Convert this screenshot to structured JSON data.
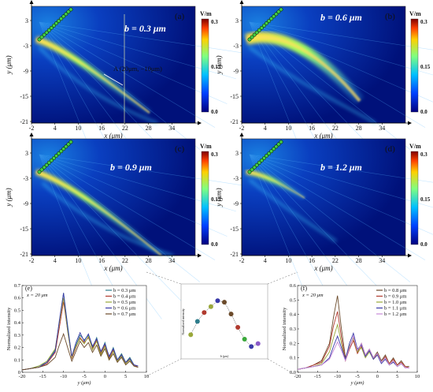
{
  "colorbar": {
    "unit": "V/m",
    "ticks": [
      "0.3",
      "0.15",
      "0.0"
    ]
  },
  "heatmaps": [
    {
      "id": "a",
      "letter": "(a)",
      "b_label": "b = 0.3 μm",
      "xticks": [
        "-2",
        "4",
        "10",
        "16",
        "22",
        "28",
        "34"
      ],
      "yticks": [
        "3",
        "-3",
        "-9",
        "-15",
        "-21"
      ],
      "xlabel": "x (μm)",
      "ylabel": "y (μm)",
      "annotation": "A (20μm, −10μm)"
    },
    {
      "id": "b",
      "letter": "(b)",
      "b_label": "b = 0.6 μm",
      "xticks": [
        "-2",
        "4",
        "10",
        "16",
        "22",
        "28",
        "34"
      ],
      "yticks": [
        "3",
        "-3",
        "-9",
        "-15",
        "-21"
      ],
      "xlabel": "x (μm)",
      "ylabel": "y (μm)"
    },
    {
      "id": "c",
      "letter": "(c)",
      "b_label": "b = 0.9 μm",
      "xticks": [
        "-2",
        "4",
        "10",
        "16",
        "22",
        "28",
        "34"
      ],
      "yticks": [
        "3",
        "-3",
        "-9",
        "-15",
        "-21"
      ],
      "xlabel": "x (μm)",
      "ylabel": "y (μm)"
    },
    {
      "id": "d",
      "letter": "(d)",
      "b_label": "b = 1.2 μm",
      "xticks": [
        "-2",
        "4",
        "10",
        "16",
        "22",
        "28",
        "34"
      ],
      "yticks": [
        "3",
        "-3",
        "-9",
        "-15",
        "-21"
      ],
      "xlabel": "x (μm)",
      "ylabel": "y (μm)"
    }
  ],
  "chart_data": [
    {
      "type": "heatmap",
      "panel": "(a)",
      "title": "b = 0.3 μm",
      "xlabel": "x (μm)",
      "ylabel": "y (μm)",
      "xlim": [
        -2,
        40
      ],
      "ylim": [
        -21,
        6
      ],
      "colorbar": {
        "unit": "V/m",
        "range": [
          0.0,
          0.3
        ]
      },
      "annotation": {
        "text": "A (20μm, −10μm)",
        "x": 20,
        "y": -10
      }
    },
    {
      "type": "heatmap",
      "panel": "(b)",
      "title": "b = 0.6 μm",
      "xlabel": "x (μm)",
      "ylabel": "y (μm)",
      "xlim": [
        -2,
        40
      ],
      "ylim": [
        -21,
        6
      ],
      "colorbar": {
        "unit": "V/m",
        "range": [
          0.0,
          0.3
        ]
      }
    },
    {
      "type": "heatmap",
      "panel": "(c)",
      "title": "b = 0.9 μm",
      "xlabel": "x (μm)",
      "ylabel": "y (μm)",
      "xlim": [
        -2,
        40
      ],
      "ylim": [
        -21,
        6
      ],
      "colorbar": {
        "unit": "V/m",
        "range": [
          0.0,
          0.3
        ]
      }
    },
    {
      "type": "heatmap",
      "panel": "(d)",
      "title": "b = 1.2 μm",
      "xlabel": "x (μm)",
      "ylabel": "y (μm)",
      "xlim": [
        -2,
        40
      ],
      "ylim": [
        -21,
        6
      ],
      "colorbar": {
        "unit": "V/m",
        "range": [
          0.0,
          0.3
        ]
      }
    },
    {
      "type": "line",
      "panel": "(e)",
      "annotation": "x = 20 μm",
      "xlabel": "y (μm)",
      "ylabel": "Normalized intensity",
      "xlim": [
        -20,
        10
      ],
      "ylim": [
        0,
        0.7
      ],
      "xticks": [
        "-20",
        "-15",
        "-10",
        "-5",
        "0",
        "5",
        "10"
      ],
      "yticks": [
        "0",
        "0.1",
        "0.2",
        "0.3",
        "0.4",
        "0.5",
        "0.6",
        "0.7"
      ],
      "legend_position": "top-right",
      "x": [
        -20,
        -18,
        -16,
        -14,
        -12,
        -11,
        -10,
        -9,
        -8,
        -7,
        -6,
        -5,
        -4,
        -3,
        -2,
        -1,
        0,
        1,
        2,
        3,
        4,
        5,
        6,
        7,
        8
      ],
      "series": [
        {
          "name": "b = 0.3 μm",
          "color": "#2e7d8c",
          "values": [
            0.02,
            0.03,
            0.05,
            0.08,
            0.18,
            0.4,
            0.64,
            0.38,
            0.12,
            0.22,
            0.3,
            0.26,
            0.3,
            0.2,
            0.28,
            0.16,
            0.24,
            0.12,
            0.2,
            0.1,
            0.15,
            0.08,
            0.12,
            0.06,
            0.05
          ]
        },
        {
          "name": "b = 0.4 μm",
          "color": "#b03a2e",
          "values": [
            0.02,
            0.03,
            0.04,
            0.07,
            0.16,
            0.36,
            0.57,
            0.34,
            0.11,
            0.2,
            0.28,
            0.24,
            0.28,
            0.19,
            0.26,
            0.15,
            0.22,
            0.11,
            0.18,
            0.09,
            0.14,
            0.07,
            0.11,
            0.05,
            0.05
          ]
        },
        {
          "name": "b = 0.5 μm",
          "color": "#9aa83a",
          "values": [
            0.02,
            0.03,
            0.05,
            0.09,
            0.19,
            0.4,
            0.6,
            0.33,
            0.12,
            0.21,
            0.27,
            0.23,
            0.29,
            0.18,
            0.25,
            0.14,
            0.21,
            0.1,
            0.17,
            0.09,
            0.13,
            0.07,
            0.1,
            0.05,
            0.04
          ]
        },
        {
          "name": "b = 0.6 μm",
          "color": "#3a3aa8",
          "values": [
            0.02,
            0.03,
            0.04,
            0.08,
            0.17,
            0.42,
            0.64,
            0.36,
            0.13,
            0.24,
            0.32,
            0.25,
            0.31,
            0.21,
            0.27,
            0.17,
            0.23,
            0.13,
            0.19,
            0.1,
            0.14,
            0.08,
            0.11,
            0.06,
            0.05
          ]
        },
        {
          "name": "b = 0.7 μm",
          "color": "#6b4a2a",
          "values": [
            0.02,
            0.03,
            0.04,
            0.06,
            0.12,
            0.22,
            0.31,
            0.2,
            0.09,
            0.17,
            0.25,
            0.2,
            0.24,
            0.16,
            0.22,
            0.13,
            0.19,
            0.1,
            0.15,
            0.08,
            0.12,
            0.06,
            0.09,
            0.05,
            0.04
          ]
        }
      ]
    },
    {
      "type": "scatter",
      "panel": "inset",
      "xlabel": "b (μm)",
      "ylabel": "Normalized intensity",
      "x": [
        0.2,
        0.3,
        0.4,
        0.5,
        0.6,
        0.7,
        0.8,
        0.9,
        1.0,
        1.1,
        1.2
      ],
      "values": [
        0.41,
        0.5,
        0.56,
        0.6,
        0.64,
        0.63,
        0.55,
        0.46,
        0.38,
        0.33,
        0.35
      ],
      "point_colors": [
        "#9aa83a",
        "#2e7d8c",
        "#b03a2e",
        "#9aa83a",
        "#3a3aa8",
        "#6b4a2a",
        "#6b4a2a",
        "#b03a2e",
        "#3aa83a",
        "#3a3aa8",
        "#8a5ac8"
      ]
    },
    {
      "type": "line",
      "panel": "(f)",
      "annotation": "x = 20 μm",
      "xlabel": "y (μm)",
      "ylabel": "Normalized intensity",
      "xlim": [
        -20,
        10
      ],
      "ylim": [
        0,
        0.6
      ],
      "xticks": [
        "-20",
        "-15",
        "-10",
        "-5",
        "0",
        "5",
        "10"
      ],
      "yticks": [
        "0.0",
        "0.1",
        "0.2",
        "0.3",
        "0.4",
        "0.5",
        "0.6"
      ],
      "legend_position": "top-right",
      "x": [
        -20,
        -18,
        -16,
        -14,
        -12,
        -11,
        -10,
        -9,
        -8,
        -7,
        -6,
        -5,
        -4,
        -3,
        -2,
        -1,
        0,
        1,
        2,
        3,
        4,
        5,
        6,
        7,
        8
      ],
      "series": [
        {
          "name": "b = 0.8 μm",
          "color": "#6b4a2a",
          "values": [
            0.02,
            0.03,
            0.05,
            0.08,
            0.2,
            0.38,
            0.53,
            0.3,
            0.1,
            0.18,
            0.24,
            0.14,
            0.2,
            0.12,
            0.16,
            0.1,
            0.14,
            0.08,
            0.12,
            0.06,
            0.1,
            0.05,
            0.08,
            0.04,
            0.04
          ]
        },
        {
          "name": "b = 0.9 μm",
          "color": "#b03a2e",
          "values": [
            0.02,
            0.03,
            0.05,
            0.07,
            0.18,
            0.32,
            0.42,
            0.24,
            0.08,
            0.16,
            0.22,
            0.13,
            0.18,
            0.11,
            0.15,
            0.09,
            0.13,
            0.07,
            0.11,
            0.06,
            0.09,
            0.05,
            0.07,
            0.04,
            0.03
          ]
        },
        {
          "name": "b = 1.0 μm",
          "color": "#9aa83a",
          "values": [
            0.02,
            0.03,
            0.04,
            0.06,
            0.14,
            0.24,
            0.33,
            0.2,
            0.08,
            0.18,
            0.24,
            0.14,
            0.17,
            0.1,
            0.14,
            0.09,
            0.12,
            0.07,
            0.1,
            0.05,
            0.08,
            0.04,
            0.06,
            0.03,
            0.03
          ]
        },
        {
          "name": "b = 1.1 μm",
          "color": "#3a3aa8",
          "values": [
            0.02,
            0.03,
            0.04,
            0.05,
            0.1,
            0.18,
            0.25,
            0.17,
            0.09,
            0.2,
            0.27,
            0.16,
            0.19,
            0.11,
            0.15,
            0.09,
            0.12,
            0.06,
            0.09,
            0.05,
            0.07,
            0.04,
            0.06,
            0.03,
            0.03
          ]
        },
        {
          "name": "b = 1.2 μm",
          "color": "#c88ad8",
          "values": [
            0.02,
            0.03,
            0.04,
            0.05,
            0.09,
            0.15,
            0.21,
            0.15,
            0.08,
            0.17,
            0.25,
            0.15,
            0.2,
            0.12,
            0.16,
            0.1,
            0.13,
            0.07,
            0.1,
            0.05,
            0.08,
            0.04,
            0.06,
            0.03,
            0.03
          ]
        }
      ]
    }
  ]
}
